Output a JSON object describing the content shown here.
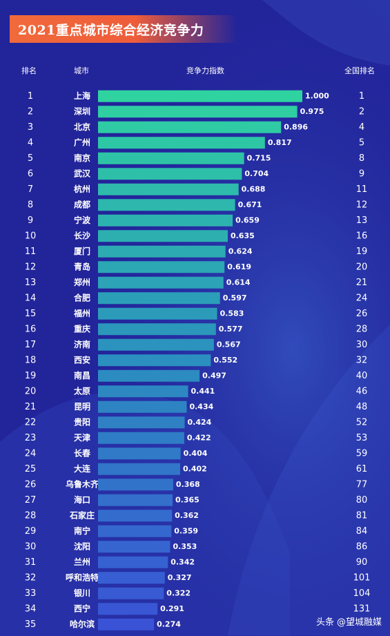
{
  "title": "2021重点城市综合经济竞争力",
  "headers": {
    "rank": "排名",
    "city": "城市",
    "index": "竞争力指数",
    "national_rank": "全国排名"
  },
  "colors": {
    "bar_top": "#2fd3a0",
    "bar_mid": "#2b8fbf",
    "bar_bottom": "#3a53d6",
    "background": "#22249a",
    "banner": "#f06a3c"
  },
  "watermark": {
    "prefix": "头条",
    "handle": "@望城融媒"
  },
  "chart_data": {
    "type": "bar",
    "orientation": "horizontal",
    "title": "2021重点城市综合经济竞争力",
    "xlim": [
      0,
      1
    ],
    "columns": [
      "排名",
      "城市",
      "竞争力指数",
      "全国排名"
    ],
    "ranks": [
      "1",
      "2",
      "3",
      "4",
      "5",
      "6",
      "7",
      "8",
      "9",
      "10",
      "11",
      "12",
      "13",
      "14",
      "15",
      "16",
      "17",
      "18",
      "19",
      "20",
      "21",
      "22",
      "23",
      "24",
      "25",
      "26",
      "27",
      "28",
      "29",
      "30",
      "31",
      "32",
      "33",
      "34",
      "35"
    ],
    "categories": [
      "上海",
      "深圳",
      "北京",
      "广州",
      "南京",
      "武汉",
      "杭州",
      "成都",
      "宁波",
      "长沙",
      "厦门",
      "青岛",
      "郑州",
      "合肥",
      "福州",
      "重庆",
      "济南",
      "西安",
      "南昌",
      "太原",
      "昆明",
      "贵阳",
      "天津",
      "长春",
      "大连",
      "乌鲁木齐",
      "海口",
      "石家庄",
      "南宁",
      "沈阳",
      "兰州",
      "呼和浩特",
      "银川",
      "西宁",
      "哈尔滨"
    ],
    "values": [
      1.0,
      0.975,
      0.896,
      0.817,
      0.715,
      0.704,
      0.688,
      0.671,
      0.659,
      0.635,
      0.624,
      0.619,
      0.614,
      0.597,
      0.583,
      0.577,
      0.567,
      0.552,
      0.497,
      0.441,
      0.434,
      0.424,
      0.422,
      0.404,
      0.402,
      0.368,
      0.365,
      0.362,
      0.359,
      0.353,
      0.342,
      0.327,
      0.322,
      0.291,
      0.274
    ],
    "value_labels": [
      "1.000",
      "0.975",
      "0.896",
      "0.817",
      "0.715",
      "0.704",
      "0.688",
      "0.671",
      "0.659",
      "0.635",
      "0.624",
      "0.619",
      "0.614",
      "0.597",
      "0.583",
      "0.577",
      "0.567",
      "0.552",
      "0.497",
      "0.441",
      "0.434",
      "0.424",
      "0.422",
      "0.404",
      "0.402",
      "0.368",
      "0.365",
      "0.362",
      "0.359",
      "0.353",
      "0.342",
      "0.327",
      "0.322",
      "0.291",
      "0.274"
    ],
    "national_ranks": [
      "1",
      "2",
      "4",
      "5",
      "8",
      "9",
      "11",
      "12",
      "13",
      "16",
      "19",
      "20",
      "21",
      "24",
      "26",
      "28",
      "30",
      "32",
      "40",
      "46",
      "48",
      "52",
      "53",
      "59",
      "61",
      "77",
      "80",
      "81",
      "84",
      "86",
      "90",
      "101",
      "104",
      "131",
      "--"
    ]
  }
}
